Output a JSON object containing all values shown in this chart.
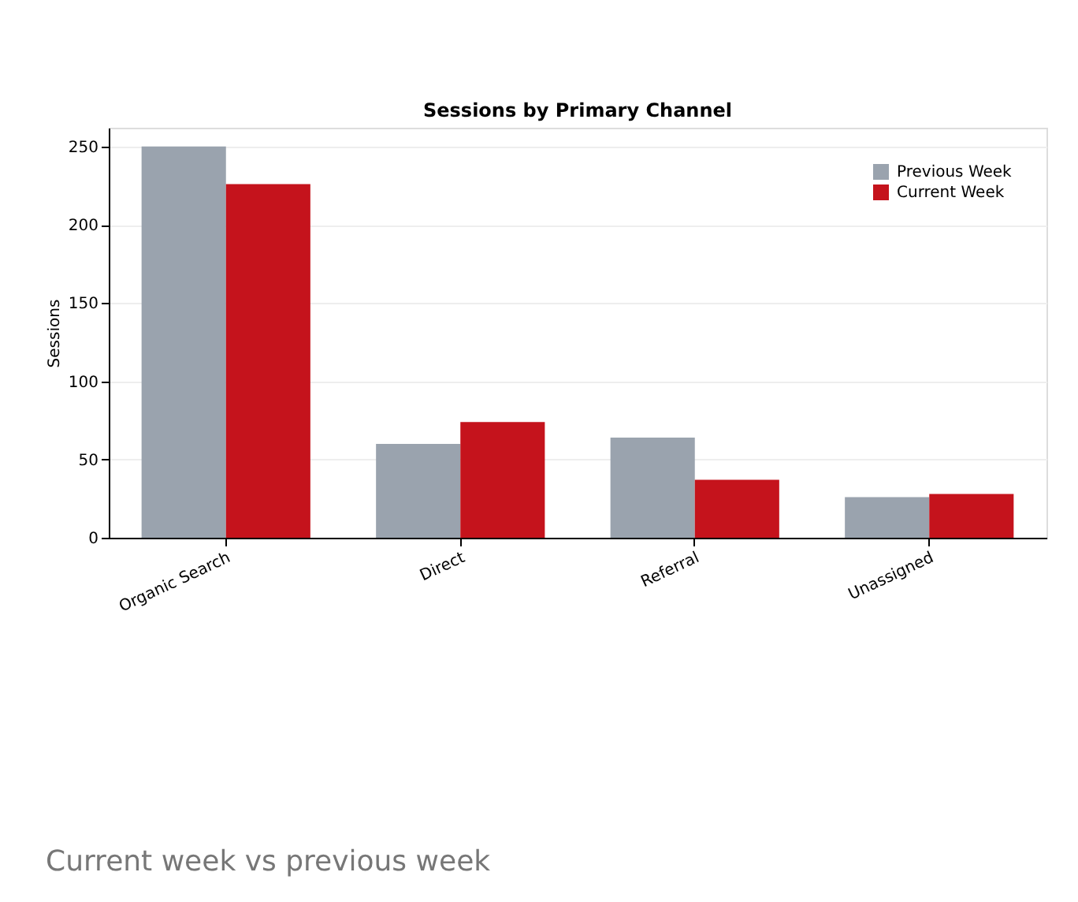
{
  "chart_data": {
    "type": "bar",
    "title": "Sessions by Primary Channel",
    "ylabel": "Sessions",
    "categories": [
      "Organic Search",
      "Direct",
      "Referral",
      "Unassigned"
    ],
    "series": [
      {
        "name": "Previous Week",
        "color": "#9aa3ae",
        "values": [
          250,
          60,
          64,
          26
        ]
      },
      {
        "name": "Current Week",
        "color": "#c5131c",
        "values": [
          226,
          74,
          37,
          28
        ]
      }
    ],
    "ylim": [
      0,
      262
    ],
    "yticks": [
      0,
      50,
      100,
      150,
      200,
      250
    ],
    "grid": "y",
    "legend": "top right",
    "annotations": [
      "Current week vs previous week"
    ]
  }
}
